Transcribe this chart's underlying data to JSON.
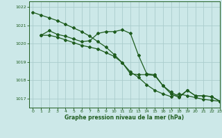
{
  "background_color": "#cce8e8",
  "grid_color": "#aacccc",
  "line_color": "#1e5c1e",
  "title": "Graphe pression niveau de la mer (hPa)",
  "ylim": [
    1016.5,
    1022.3
  ],
  "xlim": [
    -0.5,
    23
  ],
  "yticks": [
    1017,
    1018,
    1019,
    1020,
    1021,
    1022
  ],
  "xticks": [
    0,
    1,
    2,
    3,
    4,
    5,
    6,
    7,
    8,
    9,
    10,
    11,
    12,
    13,
    14,
    15,
    16,
    17,
    18,
    19,
    20,
    21,
    22,
    23
  ],
  "series1_x": [
    0,
    1,
    2,
    3,
    4,
    5,
    6,
    7,
    8,
    9,
    10,
    11,
    12,
    13,
    14,
    15,
    16,
    17,
    18,
    19,
    20,
    21,
    22,
    23
  ],
  "series1_y": [
    1021.7,
    1021.55,
    1021.4,
    1021.25,
    1021.05,
    1020.85,
    1020.65,
    1020.4,
    1020.1,
    1019.8,
    1019.4,
    1018.95,
    1018.45,
    1018.15,
    1017.75,
    1017.45,
    1017.25,
    1017.1,
    1017.25,
    1017.15,
    1017.05,
    1016.95,
    1016.9,
    1016.85
  ],
  "series2_x": [
    1,
    2,
    3,
    4,
    5,
    6,
    7,
    8,
    9,
    10,
    11,
    12,
    13,
    14,
    15,
    16,
    17,
    18,
    19,
    20,
    21,
    22,
    23
  ],
  "series2_y": [
    1020.45,
    1020.7,
    1020.5,
    1020.4,
    1020.25,
    1020.1,
    1020.15,
    1020.55,
    1020.65,
    1020.65,
    1020.75,
    1020.55,
    1019.35,
    1018.35,
    1018.3,
    1017.7,
    1017.25,
    1017.05,
    1017.45,
    1017.15,
    1017.15,
    1017.1,
    1016.85
  ],
  "series3_x": [
    1,
    2,
    3,
    4,
    5,
    6,
    7,
    8,
    9,
    10,
    11,
    12,
    13,
    14,
    15,
    16,
    17,
    18,
    19,
    20,
    21,
    22,
    23
  ],
  "series3_y": [
    1020.45,
    1020.45,
    1020.35,
    1020.2,
    1020.05,
    1019.9,
    1019.8,
    1019.7,
    1019.5,
    1019.3,
    1018.95,
    1018.35,
    1018.3,
    1018.3,
    1018.25,
    1017.7,
    1017.35,
    1017.1,
    1017.45,
    1017.15,
    1017.15,
    1017.1,
    1016.85
  ]
}
